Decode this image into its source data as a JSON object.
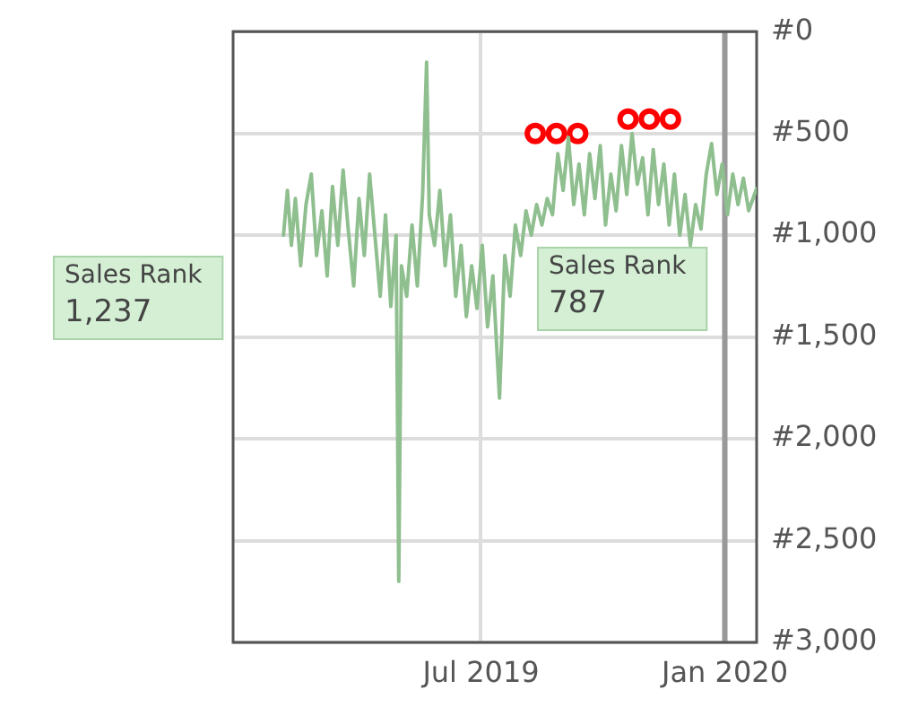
{
  "chart_data": {
    "type": "line",
    "xlim": [
      "2018-12-26",
      "2020-01-25"
    ],
    "xticks": [
      {
        "value": "2019-07-01",
        "label": "Jul 2019"
      },
      {
        "value": "2020-01-01",
        "label": "Jan 2020"
      }
    ],
    "ylim": [
      3000,
      0
    ],
    "yticks": [
      {
        "value": 0,
        "label": "#0"
      },
      {
        "value": 500,
        "label": "#500"
      },
      {
        "value": 1000,
        "label": "#1,000"
      },
      {
        "value": 1500,
        "label": "#1,500"
      },
      {
        "value": 2000,
        "label": "#2,000"
      },
      {
        "value": 2500,
        "label": "#2,500"
      },
      {
        "value": 3000,
        "label": "#3,000"
      }
    ],
    "grid": true,
    "legend": false,
    "series": [
      {
        "color": "#8fbf8f",
        "marker": "none",
        "x": [
          "2019-02-02",
          "2019-02-05",
          "2019-02-08",
          "2019-02-11",
          "2019-02-15",
          "2019-02-19",
          "2019-02-23",
          "2019-02-27",
          "2019-03-03",
          "2019-03-07",
          "2019-03-11",
          "2019-03-15",
          "2019-03-19",
          "2019-03-23",
          "2019-03-27",
          "2019-03-31",
          "2019-04-04",
          "2019-04-08",
          "2019-04-12",
          "2019-04-16",
          "2019-04-20",
          "2019-04-24",
          "2019-04-28",
          "2019-04-30",
          "2019-05-02",
          "2019-05-06",
          "2019-05-10",
          "2019-05-14",
          "2019-05-18",
          "2019-05-21",
          "2019-05-23",
          "2019-05-27",
          "2019-05-31",
          "2019-06-04",
          "2019-06-08",
          "2019-06-12",
          "2019-06-16",
          "2019-06-20",
          "2019-06-24",
          "2019-06-28",
          "2019-07-02",
          "2019-07-06",
          "2019-07-10",
          "2019-07-15",
          "2019-07-19",
          "2019-07-23",
          "2019-07-27",
          "2019-07-31",
          "2019-08-04",
          "2019-08-08",
          "2019-08-12",
          "2019-08-16",
          "2019-08-20",
          "2019-08-24",
          "2019-08-28",
          "2019-09-01",
          "2019-09-05",
          "2019-09-09",
          "2019-09-13",
          "2019-09-17",
          "2019-09-21",
          "2019-09-25",
          "2019-09-29",
          "2019-10-03",
          "2019-10-07",
          "2019-10-11",
          "2019-10-15",
          "2019-10-19",
          "2019-10-23",
          "2019-10-27",
          "2019-10-31",
          "2019-11-04",
          "2019-11-08",
          "2019-11-12",
          "2019-11-16",
          "2019-11-20",
          "2019-11-24",
          "2019-11-28",
          "2019-12-02",
          "2019-12-06",
          "2019-12-10",
          "2019-12-14",
          "2019-12-18",
          "2019-12-22",
          "2019-12-26",
          "2019-12-30",
          "2020-01-03",
          "2020-01-07",
          "2020-01-11",
          "2020-01-15",
          "2020-01-19",
          "2020-01-25"
        ],
        "values": [
          1000,
          780,
          1050,
          820,
          1150,
          850,
          700,
          1100,
          880,
          1200,
          760,
          1050,
          680,
          980,
          1250,
          820,
          1100,
          700,
          1000,
          1300,
          900,
          1350,
          1000,
          2700,
          1150,
          1300,
          950,
          1250,
          800,
          150,
          900,
          1050,
          780,
          1150,
          900,
          1300,
          1050,
          1400,
          1150,
          1360,
          1050,
          1450,
          1200,
          1800,
          1100,
          1300,
          950,
          1100,
          880,
          1000,
          850,
          950,
          820,
          900,
          600,
          780,
          520,
          850,
          650,
          900,
          600,
          820,
          560,
          950,
          700,
          880,
          560,
          800,
          500,
          750,
          620,
          900,
          580,
          850,
          650,
          950,
          700,
          1000,
          800,
          1050,
          850,
          970,
          700,
          550,
          800,
          650,
          900,
          700,
          850,
          720,
          880,
          770
        ]
      },
      {
        "type": "scatter",
        "color": "#ff0000",
        "marker": "circle",
        "x": [
          "2019-08-11",
          "2019-08-27",
          "2019-09-12",
          "2019-10-20",
          "2019-11-05",
          "2019-11-21"
        ],
        "values": [
          500,
          500,
          500,
          430,
          430,
          430
        ]
      }
    ],
    "ref_lines": [
      {
        "axis": "x",
        "value": "2020-01-01",
        "color": "#999999"
      }
    ],
    "annotations": [
      "Sales Rank 1,237",
      "Sales Rank 787"
    ]
  }
}
